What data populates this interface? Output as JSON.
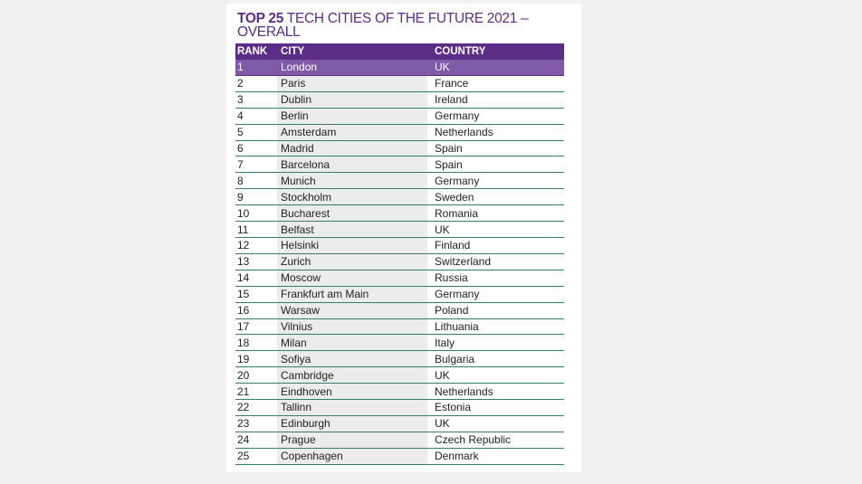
{
  "title": {
    "bold": "TOP 25",
    "rest": " TECH CITIES OF THE FUTURE 2021 – OVERALL"
  },
  "headers": {
    "rank": "RANK",
    "city": "CITY",
    "country": "COUNTRY"
  },
  "rows": [
    [
      "1",
      "London",
      "UK"
    ],
    [
      "2",
      "Paris",
      "France"
    ],
    [
      "3",
      "Dublin",
      "Ireland"
    ],
    [
      "4",
      "Berlin",
      "Germany"
    ],
    [
      "5",
      "Amsterdam",
      "Netherlands"
    ],
    [
      "6",
      "Madrid",
      "Spain"
    ],
    [
      "7",
      "Barcelona",
      "Spain"
    ],
    [
      "8",
      "Munich",
      "Germany"
    ],
    [
      "9",
      "Stockholm",
      "Sweden"
    ],
    [
      "10",
      "Bucharest",
      "Romania"
    ],
    [
      "11",
      "Belfast",
      "UK"
    ],
    [
      "12",
      "Helsinki",
      "Finland"
    ],
    [
      "13",
      "Zurich",
      "Switzerland"
    ],
    [
      "14",
      "Moscow",
      "Russia"
    ],
    [
      "15",
      "Frankfurt am Main",
      "Germany"
    ],
    [
      "16",
      "Warsaw",
      "Poland"
    ],
    [
      "17",
      "Vilnius",
      "Lithuania"
    ],
    [
      "18",
      "Milan",
      "Italy"
    ],
    [
      "19",
      "Sofiya",
      "Bulgaria"
    ],
    [
      "20",
      "Cambridge",
      "UK"
    ],
    [
      "21",
      "Eindhoven",
      "Netherlands"
    ],
    [
      "22",
      "Tallinn",
      "Estonia"
    ],
    [
      "23",
      "Edinburgh",
      "UK"
    ],
    [
      "24",
      "Prague",
      "Czech Republic"
    ],
    [
      "25",
      "Copenhagen",
      "Denmark"
    ]
  ],
  "colors": {
    "accent": "#5b2d86",
    "highlight": "#7f5aa6",
    "rule": "#3a7a72"
  }
}
